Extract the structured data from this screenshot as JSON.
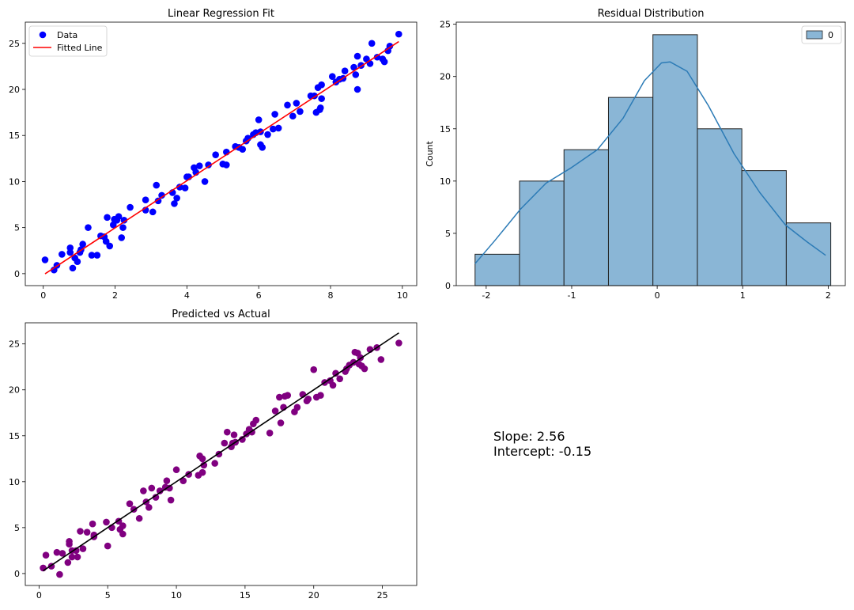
{
  "chart_data": [
    {
      "type": "scatter",
      "title": "Linear Regression Fit",
      "xlabel": "",
      "ylabel": "",
      "xlim": [
        -0.5,
        10.4
      ],
      "ylim": [
        -1.3,
        27.3
      ],
      "xticks": [
        "0",
        "2",
        "4",
        "6",
        "8",
        "10"
      ],
      "yticks": [
        "0",
        "5",
        "10",
        "15",
        "20",
        "25"
      ],
      "legend": {
        "position": "top-left",
        "entries": [
          "Data",
          "Fitted Line"
        ]
      },
      "series": [
        {
          "name": "Data",
          "kind": "points",
          "color": "#0000ff",
          "points": [
            [
              0.05,
              1.5
            ],
            [
              0.3,
              0.4
            ],
            [
              0.38,
              0.9
            ],
            [
              0.52,
              2.1
            ],
            [
              0.75,
              2.3
            ],
            [
              0.75,
              2.8
            ],
            [
              0.82,
              0.6
            ],
            [
              0.88,
              1.7
            ],
            [
              0.95,
              1.3
            ],
            [
              1.02,
              2.3
            ],
            [
              1.05,
              2.6
            ],
            [
              1.1,
              3.2
            ],
            [
              1.25,
              5.0
            ],
            [
              1.35,
              2.0
            ],
            [
              1.5,
              2.0
            ],
            [
              1.6,
              4.1
            ],
            [
              1.7,
              4.0
            ],
            [
              1.75,
              3.5
            ],
            [
              1.78,
              6.1
            ],
            [
              1.85,
              3.0
            ],
            [
              1.95,
              5.3
            ],
            [
              1.98,
              5.9
            ],
            [
              2.05,
              5.8
            ],
            [
              2.1,
              6.2
            ],
            [
              2.18,
              3.9
            ],
            [
              2.22,
              5.0
            ],
            [
              2.25,
              5.8
            ],
            [
              2.42,
              7.2
            ],
            [
              2.85,
              6.9
            ],
            [
              2.85,
              8.0
            ],
            [
              3.05,
              6.7
            ],
            [
              3.15,
              9.6
            ],
            [
              3.2,
              7.9
            ],
            [
              3.3,
              8.5
            ],
            [
              3.6,
              8.8
            ],
            [
              3.65,
              7.6
            ],
            [
              3.72,
              8.2
            ],
            [
              3.8,
              9.4
            ],
            [
              3.95,
              9.3
            ],
            [
              4.0,
              10.5
            ],
            [
              4.05,
              10.5
            ],
            [
              4.2,
              11.5
            ],
            [
              4.25,
              11.0
            ],
            [
              4.35,
              11.7
            ],
            [
              4.5,
              10.0
            ],
            [
              4.6,
              11.8
            ],
            [
              4.8,
              12.9
            ],
            [
              5.0,
              11.9
            ],
            [
              5.1,
              11.8
            ],
            [
              5.1,
              13.2
            ],
            [
              5.35,
              13.8
            ],
            [
              5.45,
              13.7
            ],
            [
              5.55,
              13.5
            ],
            [
              5.65,
              14.4
            ],
            [
              5.7,
              14.7
            ],
            [
              5.85,
              15.1
            ],
            [
              5.92,
              15.3
            ],
            [
              6.0,
              16.7
            ],
            [
              6.05,
              14.0
            ],
            [
              6.05,
              15.4
            ],
            [
              6.1,
              13.7
            ],
            [
              6.25,
              15.1
            ],
            [
              6.4,
              15.7
            ],
            [
              6.45,
              17.3
            ],
            [
              6.55,
              15.8
            ],
            [
              6.8,
              18.3
            ],
            [
              6.95,
              17.1
            ],
            [
              7.05,
              18.5
            ],
            [
              7.15,
              17.6
            ],
            [
              7.45,
              19.3
            ],
            [
              7.55,
              19.3
            ],
            [
              7.6,
              17.5
            ],
            [
              7.65,
              20.2
            ],
            [
              7.7,
              17.8
            ],
            [
              7.72,
              18.0
            ],
            [
              7.75,
              20.5
            ],
            [
              7.75,
              19.0
            ],
            [
              8.05,
              21.4
            ],
            [
              8.15,
              20.8
            ],
            [
              8.25,
              21.1
            ],
            [
              8.35,
              21.2
            ],
            [
              8.4,
              22.0
            ],
            [
              8.65,
              22.4
            ],
            [
              8.7,
              21.6
            ],
            [
              8.75,
              20.0
            ],
            [
              8.75,
              23.6
            ],
            [
              8.85,
              22.6
            ],
            [
              9.0,
              23.3
            ],
            [
              9.1,
              22.8
            ],
            [
              9.15,
              25.0
            ],
            [
              9.3,
              23.5
            ],
            [
              9.45,
              23.3
            ],
            [
              9.5,
              23.0
            ],
            [
              9.6,
              24.2
            ],
            [
              9.65,
              24.7
            ],
            [
              9.9,
              26.0
            ]
          ]
        },
        {
          "name": "Fitted Line",
          "kind": "line",
          "color": "#ff0000",
          "points": [
            [
              0.05,
              -0.02
            ],
            [
              9.9,
              25.19
            ]
          ]
        }
      ]
    },
    {
      "type": "bar",
      "title": "Residual Distribution",
      "xlabel": "",
      "ylabel": "Count",
      "xlim": [
        -2.35,
        2.2
      ],
      "ylim": [
        0,
        25.2
      ],
      "xticks": [
        "-2",
        "-1",
        "0",
        "1",
        "2"
      ],
      "yticks": [
        "0",
        "5",
        "10",
        "15",
        "20",
        "25"
      ],
      "legend": {
        "position": "top-right",
        "entries": [
          "0"
        ]
      },
      "bins": [
        [
          -2.13,
          -1.61,
          3
        ],
        [
          -1.61,
          -1.09,
          10
        ],
        [
          -1.09,
          -0.57,
          13
        ],
        [
          -0.57,
          -0.05,
          18
        ],
        [
          -0.05,
          0.47,
          24
        ],
        [
          0.47,
          0.99,
          15
        ],
        [
          0.99,
          1.51,
          11
        ],
        [
          1.51,
          2.03,
          6
        ]
      ],
      "bar_color": "#8ab6d6",
      "kde": {
        "color": "#2c7bb6",
        "points": [
          [
            -2.13,
            2.1
          ],
          [
            -1.9,
            4.3
          ],
          [
            -1.6,
            7.3
          ],
          [
            -1.3,
            9.8
          ],
          [
            -1.0,
            11.3
          ],
          [
            -0.7,
            13.0
          ],
          [
            -0.4,
            16.0
          ],
          [
            -0.15,
            19.6
          ],
          [
            0.05,
            21.3
          ],
          [
            0.15,
            21.4
          ],
          [
            0.35,
            20.5
          ],
          [
            0.6,
            17.2
          ],
          [
            0.9,
            12.6
          ],
          [
            1.2,
            8.9
          ],
          [
            1.5,
            5.8
          ],
          [
            1.75,
            4.2
          ],
          [
            1.97,
            2.9
          ]
        ]
      }
    },
    {
      "type": "scatter",
      "title": "Predicted vs Actual",
      "xlabel": "",
      "ylabel": "",
      "xlim": [
        -1.0,
        27.5
      ],
      "ylim": [
        -1.3,
        27.3
      ],
      "xticks": [
        "0",
        "5",
        "10",
        "15",
        "20",
        "25"
      ],
      "yticks": [
        "0",
        "5",
        "10",
        "15",
        "20",
        "25"
      ],
      "series": [
        {
          "name": "",
          "kind": "points",
          "color": "#800080",
          "points": [
            [
              0.3,
              0.6
            ],
            [
              0.5,
              2.0
            ],
            [
              0.9,
              0.8
            ],
            [
              1.3,
              2.3
            ],
            [
              1.5,
              -0.1
            ],
            [
              1.7,
              2.2
            ],
            [
              2.1,
              1.2
            ],
            [
              2.2,
              3.5
            ],
            [
              2.2,
              3.2
            ],
            [
              2.4,
              2.5
            ],
            [
              2.4,
              1.8
            ],
            [
              2.7,
              2.5
            ],
            [
              2.8,
              1.8
            ],
            [
              3.0,
              4.6
            ],
            [
              3.2,
              2.7
            ],
            [
              3.5,
              4.5
            ],
            [
              3.9,
              5.4
            ],
            [
              4.0,
              4.0
            ],
            [
              4.0,
              4.2
            ],
            [
              4.9,
              5.6
            ],
            [
              5.0,
              3.0
            ],
            [
              5.3,
              5.0
            ],
            [
              5.8,
              5.7
            ],
            [
              5.9,
              4.8
            ],
            [
              6.1,
              4.3
            ],
            [
              6.1,
              5.2
            ],
            [
              6.6,
              7.6
            ],
            [
              6.9,
              7.0
            ],
            [
              7.3,
              6.0
            ],
            [
              7.6,
              9.0
            ],
            [
              7.8,
              7.8
            ],
            [
              8.0,
              7.2
            ],
            [
              8.2,
              9.3
            ],
            [
              8.5,
              8.3
            ],
            [
              8.8,
              9.0
            ],
            [
              9.2,
              9.4
            ],
            [
              9.3,
              10.1
            ],
            [
              9.5,
              9.3
            ],
            [
              9.6,
              8.0
            ],
            [
              10.0,
              11.3
            ],
            [
              10.5,
              10.1
            ],
            [
              10.9,
              10.8
            ],
            [
              11.6,
              10.7
            ],
            [
              11.7,
              12.8
            ],
            [
              11.9,
              12.5
            ],
            [
              11.9,
              11.0
            ],
            [
              12.0,
              11.8
            ],
            [
              12.8,
              12.0
            ],
            [
              13.1,
              13.0
            ],
            [
              13.5,
              14.2
            ],
            [
              13.7,
              15.4
            ],
            [
              14.0,
              13.8
            ],
            [
              14.1,
              14.2
            ],
            [
              14.2,
              15.1
            ],
            [
              14.3,
              14.3
            ],
            [
              14.8,
              14.6
            ],
            [
              15.1,
              15.2
            ],
            [
              15.3,
              15.7
            ],
            [
              15.5,
              15.4
            ],
            [
              15.6,
              16.3
            ],
            [
              15.8,
              16.7
            ],
            [
              16.8,
              15.3
            ],
            [
              17.2,
              17.7
            ],
            [
              17.5,
              19.2
            ],
            [
              17.6,
              16.4
            ],
            [
              17.8,
              18.1
            ],
            [
              17.9,
              19.3
            ],
            [
              18.1,
              19.4
            ],
            [
              18.6,
              17.6
            ],
            [
              18.8,
              18.1
            ],
            [
              19.2,
              19.5
            ],
            [
              19.5,
              18.8
            ],
            [
              19.6,
              19.0
            ],
            [
              20.0,
              22.2
            ],
            [
              20.2,
              19.2
            ],
            [
              20.5,
              19.4
            ],
            [
              20.8,
              20.8
            ],
            [
              21.2,
              21.0
            ],
            [
              21.4,
              20.5
            ],
            [
              21.6,
              21.8
            ],
            [
              21.9,
              21.2
            ],
            [
              22.3,
              22.0
            ],
            [
              22.4,
              22.3
            ],
            [
              22.6,
              22.7
            ],
            [
              22.9,
              23.0
            ],
            [
              23.0,
              24.1
            ],
            [
              23.2,
              24.0
            ],
            [
              23.3,
              22.8
            ],
            [
              23.4,
              23.5
            ],
            [
              23.5,
              22.6
            ],
            [
              23.7,
              22.3
            ],
            [
              24.1,
              24.4
            ],
            [
              24.6,
              24.6
            ],
            [
              24.9,
              23.3
            ],
            [
              26.2,
              25.1
            ]
          ]
        },
        {
          "name": "",
          "kind": "line",
          "color": "#000000",
          "points": [
            [
              0.3,
              0.3
            ],
            [
              26.2,
              26.2
            ]
          ]
        }
      ]
    }
  ],
  "annotation": {
    "slope_text": "Slope: 2.56",
    "intercept_text": "Intercept: -0.15"
  }
}
